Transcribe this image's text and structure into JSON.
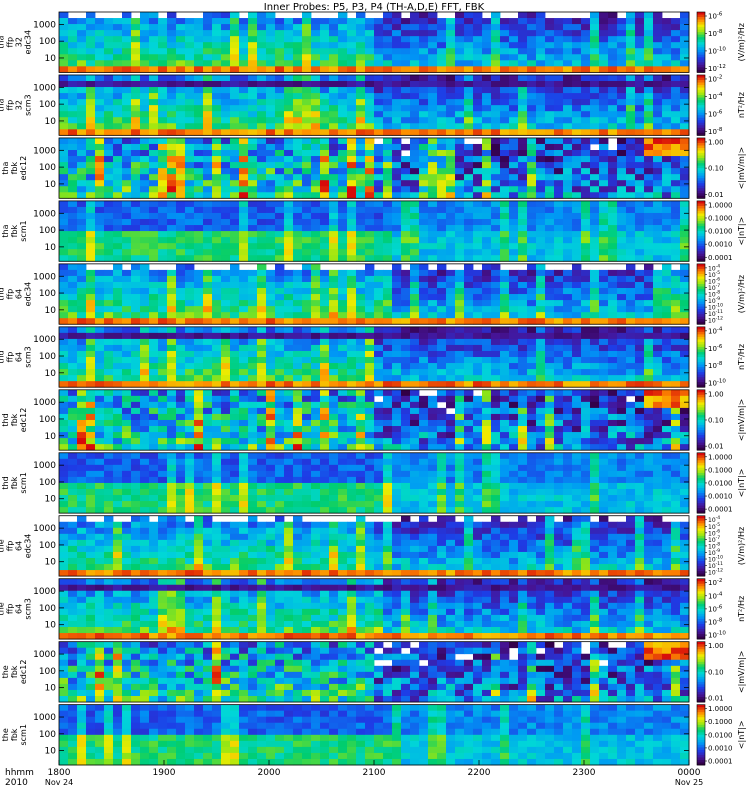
{
  "chart_data": {
    "type": "heatmap",
    "title": "Inner Probes: P5, P3, P4 (TH-A,D,E) FFT, FBK",
    "time_axis": {
      "corner_label": [
        "hhmm",
        "2010"
      ],
      "ticks": [
        {
          "hhmm": "1800",
          "date": "Nov 24"
        },
        {
          "hhmm": "1900",
          "date": ""
        },
        {
          "hhmm": "2000",
          "date": ""
        },
        {
          "hhmm": "2100",
          "date": ""
        },
        {
          "hhmm": "2200",
          "date": ""
        },
        {
          "hhmm": "2300",
          "date": ""
        },
        {
          "hhmm": "0000",
          "date": "Nov 25"
        }
      ]
    },
    "panels": [
      {
        "probe": "tha",
        "label": [
          "tha",
          "ffp",
          "32",
          "edc34"
        ],
        "kind": "ffp_e",
        "y_ticks": [
          "1000",
          "100",
          "10"
        ],
        "cb_ticks": [
          "10^-6",
          "10^-8",
          "10^-10",
          "10^-12"
        ],
        "cb_label": "(V/m)²/Hz"
      },
      {
        "probe": "tha",
        "label": [
          "tha",
          "ffp",
          "32",
          "scm3"
        ],
        "kind": "ffp_b",
        "y_ticks": [
          "1000",
          "100",
          "10"
        ],
        "cb_ticks": [
          "10^-2",
          "10^-4",
          "10^-6",
          "10^-8"
        ],
        "cb_label": "nT²/Hz"
      },
      {
        "probe": "tha",
        "label": [
          "tha",
          "fbk",
          "edc12"
        ],
        "kind": "fbk_e",
        "y_ticks": [
          "1000",
          "100",
          "10"
        ],
        "cb_ticks": [
          "1.00",
          "0.10",
          "0.01"
        ],
        "cb_label": "<|mV/m|>"
      },
      {
        "probe": "tha",
        "label": [
          "tha",
          "fbk",
          "scm1"
        ],
        "kind": "fbk_b",
        "y_ticks": [
          "1000",
          "100",
          "10"
        ],
        "cb_ticks": [
          "1.0000",
          "0.1000",
          "0.0100",
          "0.0010",
          "0.0001"
        ],
        "cb_label": "<|nT|>"
      },
      {
        "probe": "thd",
        "label": [
          "thd",
          "ffp",
          "64",
          "edc34"
        ],
        "kind": "ffp_e",
        "y_ticks": [
          "1000",
          "100",
          "10"
        ],
        "cb_ticks": [
          "10^-4",
          "10^-5",
          "10^-6",
          "10^-7",
          "10^-8",
          "10^-9",
          "10^-10",
          "10^-11",
          "10^-12"
        ],
        "cb_label": "(V/m)²/Hz"
      },
      {
        "probe": "thd",
        "label": [
          "thd",
          "ffp",
          "64",
          "scm3"
        ],
        "kind": "ffp_b",
        "y_ticks": [
          "1000",
          "100",
          "10"
        ],
        "cb_ticks": [
          "10^-4",
          "10^-6",
          "10^-8",
          "10^-10"
        ],
        "cb_label": "nT²/Hz"
      },
      {
        "probe": "thd",
        "label": [
          "thd",
          "fbk",
          "edc12"
        ],
        "kind": "fbk_e",
        "y_ticks": [
          "1000",
          "100",
          "10"
        ],
        "cb_ticks": [
          "1.00",
          "0.10",
          "0.01"
        ],
        "cb_label": "<|mV/m|>"
      },
      {
        "probe": "thd",
        "label": [
          "thd",
          "fbk",
          "scm1"
        ],
        "kind": "fbk_b",
        "y_ticks": [
          "1000",
          "100",
          "10"
        ],
        "cb_ticks": [
          "1.0000",
          "0.1000",
          "0.0100",
          "0.0010",
          "0.0001"
        ],
        "cb_label": "<|nT|>"
      },
      {
        "probe": "the",
        "label": [
          "the",
          "ffp",
          "64",
          "edc34"
        ],
        "kind": "ffp_e",
        "y_ticks": [
          "1000",
          "100",
          "10"
        ],
        "cb_ticks": [
          "10^-4",
          "10^-5",
          "10^-6",
          "10^-7",
          "10^-8",
          "10^-9",
          "10^-10",
          "10^-11",
          "10^-12"
        ],
        "cb_label": "(V/m)²/Hz"
      },
      {
        "probe": "the",
        "label": [
          "the",
          "ffp",
          "64",
          "scm3"
        ],
        "kind": "ffp_b",
        "y_ticks": [
          "1000",
          "100",
          "10"
        ],
        "cb_ticks": [
          "10^-2",
          "10^-4",
          "10^-6",
          "10^-8",
          "10^-10"
        ],
        "cb_label": "nT²/Hz"
      },
      {
        "probe": "the",
        "label": [
          "the",
          "fbk",
          "edc12"
        ],
        "kind": "fbk_e",
        "y_ticks": [
          "1000",
          "100",
          "10"
        ],
        "cb_ticks": [
          "1.00",
          "0.10",
          "0.01"
        ],
        "cb_label": "<|mV/m|>"
      },
      {
        "probe": "the",
        "label": [
          "the",
          "fbk",
          "scm1"
        ],
        "kind": "fbk_b",
        "y_ticks": [
          "1000",
          "100",
          "10"
        ],
        "cb_ticks": [
          "1.0000",
          "0.1000",
          "0.0100",
          "0.0010",
          "0.0001"
        ],
        "cb_label": "<|nT|>"
      }
    ]
  }
}
